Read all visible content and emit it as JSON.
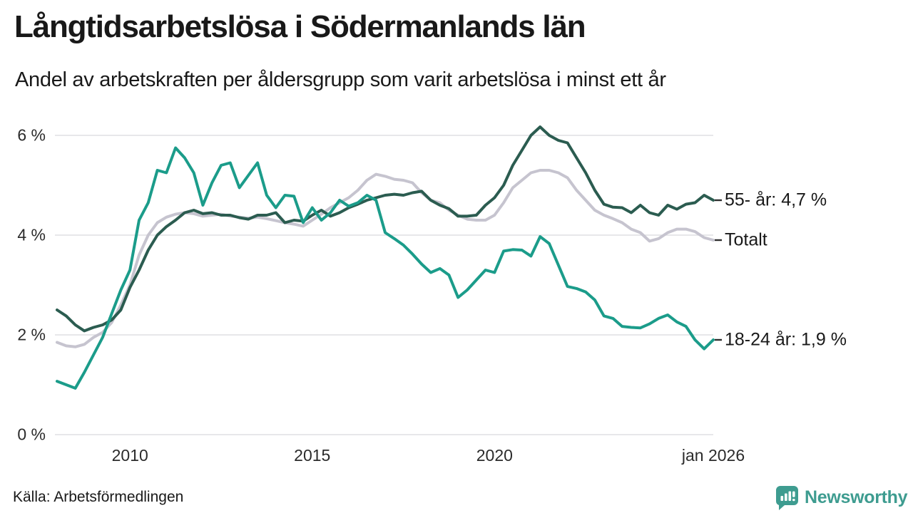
{
  "header": {
    "title": "Långtidsarbetslösa i Södermanlands län",
    "subtitle": "Andel av arbetskraften per åldersgrupp som varit arbetslösa i minst ett år"
  },
  "source": {
    "label": "Källa: Arbetsförmedlingen"
  },
  "branding": {
    "name": "Newsworthy",
    "color": "#3E9C90",
    "logo_icon": "speech-bubble-bar-chart-icon"
  },
  "chart_data": {
    "type": "line",
    "title": "Långtidsarbetslösa i Södermanlands län",
    "subtitle": "Andel av arbetskraften per åldersgrupp som varit arbetslösa i minst ett år",
    "grid": "horizontal",
    "legend_position": "right-edge-labels",
    "x_range": [
      2008.0,
      2026.0
    ],
    "x_axis": {
      "ticks": [
        "2010",
        "2015",
        "2020",
        "jan 2026"
      ],
      "tick_years": [
        2010,
        2015,
        2020,
        2026
      ]
    },
    "y_axis": {
      "unit": "%",
      "ticks": [
        "0 %",
        "2 %",
        "4 %",
        "6 %"
      ],
      "tick_values": [
        0,
        2,
        4,
        6
      ],
      "range": [
        0,
        6.5
      ]
    },
    "x": [
      2008.0,
      2008.25,
      2008.5,
      2008.75,
      2009.0,
      2009.25,
      2009.5,
      2009.75,
      2010.0,
      2010.25,
      2010.5,
      2010.75,
      2011.0,
      2011.25,
      2011.5,
      2011.75,
      2012.0,
      2012.25,
      2012.5,
      2012.75,
      2013.0,
      2013.25,
      2013.5,
      2013.75,
      2014.0,
      2014.25,
      2014.5,
      2014.75,
      2015.0,
      2015.25,
      2015.5,
      2015.75,
      2016.0,
      2016.25,
      2016.5,
      2016.75,
      2017.0,
      2017.25,
      2017.5,
      2017.75,
      2018.0,
      2018.25,
      2018.5,
      2018.75,
      2019.0,
      2019.25,
      2019.5,
      2019.75,
      2020.0,
      2020.25,
      2020.5,
      2020.75,
      2021.0,
      2021.25,
      2021.5,
      2021.75,
      2022.0,
      2022.25,
      2022.5,
      2022.75,
      2023.0,
      2023.25,
      2023.5,
      2023.75,
      2024.0,
      2024.25,
      2024.5,
      2024.75,
      2025.0,
      2025.25,
      2025.5,
      2025.75,
      2026.0
    ],
    "series": [
      {
        "name": "Totalt",
        "label": "Totalt",
        "color": "#c6c4cf",
        "values": [
          1.85,
          1.78,
          1.76,
          1.81,
          1.95,
          2.05,
          2.25,
          2.6,
          3.0,
          3.6,
          4.0,
          4.25,
          4.36,
          4.42,
          4.45,
          4.43,
          4.38,
          4.4,
          4.42,
          4.38,
          4.36,
          4.34,
          4.36,
          4.33,
          4.29,
          4.25,
          4.22,
          4.18,
          4.3,
          4.42,
          4.55,
          4.65,
          4.75,
          4.9,
          5.1,
          5.22,
          5.18,
          5.12,
          5.1,
          5.05,
          4.85,
          4.7,
          4.65,
          4.5,
          4.4,
          4.32,
          4.3,
          4.3,
          4.4,
          4.65,
          4.95,
          5.1,
          5.25,
          5.3,
          5.3,
          5.25,
          5.15,
          4.9,
          4.7,
          4.5,
          4.4,
          4.33,
          4.25,
          4.12,
          4.05,
          3.88,
          3.93,
          4.05,
          4.12,
          4.12,
          4.07,
          3.95,
          3.9
        ]
      },
      {
        "name": "55- år",
        "label": "55- år: 4,7 %",
        "last_value": "4,7 %",
        "color": "#2b5c50",
        "values": [
          2.5,
          2.38,
          2.2,
          2.08,
          2.15,
          2.2,
          2.3,
          2.5,
          2.95,
          3.3,
          3.7,
          4.0,
          4.17,
          4.3,
          4.45,
          4.5,
          4.43,
          4.45,
          4.4,
          4.4,
          4.35,
          4.32,
          4.4,
          4.4,
          4.45,
          4.25,
          4.3,
          4.28,
          4.4,
          4.5,
          4.38,
          4.45,
          4.55,
          4.62,
          4.7,
          4.75,
          4.8,
          4.82,
          4.8,
          4.85,
          4.88,
          4.7,
          4.6,
          4.53,
          4.38,
          4.38,
          4.4,
          4.6,
          4.75,
          5.0,
          5.4,
          5.7,
          6.0,
          6.17,
          6.0,
          5.9,
          5.85,
          5.55,
          5.25,
          4.9,
          4.62,
          4.56,
          4.55,
          4.45,
          4.6,
          4.45,
          4.4,
          4.6,
          4.52,
          4.62,
          4.65,
          4.8,
          4.7
        ]
      },
      {
        "name": "18-24 år",
        "label": "18-24 år: 1,9 %",
        "last_value": "1,9 %",
        "color": "#1b9c8a",
        "values": [
          1.07,
          1.0,
          0.93,
          1.25,
          1.6,
          1.95,
          2.43,
          2.9,
          3.3,
          4.3,
          4.65,
          5.3,
          5.25,
          5.75,
          5.55,
          5.25,
          4.6,
          5.05,
          5.4,
          5.45,
          4.95,
          5.2,
          5.45,
          4.8,
          4.55,
          4.8,
          4.78,
          4.25,
          4.55,
          4.3,
          4.45,
          4.7,
          4.58,
          4.65,
          4.8,
          4.7,
          4.05,
          3.93,
          3.8,
          3.62,
          3.42,
          3.25,
          3.33,
          3.2,
          2.75,
          2.9,
          3.1,
          3.3,
          3.25,
          3.68,
          3.71,
          3.7,
          3.58,
          3.97,
          3.83,
          3.4,
          2.97,
          2.93,
          2.86,
          2.7,
          2.38,
          2.33,
          2.17,
          2.15,
          2.14,
          2.22,
          2.33,
          2.4,
          2.26,
          2.17,
          1.9,
          1.72,
          1.9
        ]
      }
    ]
  }
}
